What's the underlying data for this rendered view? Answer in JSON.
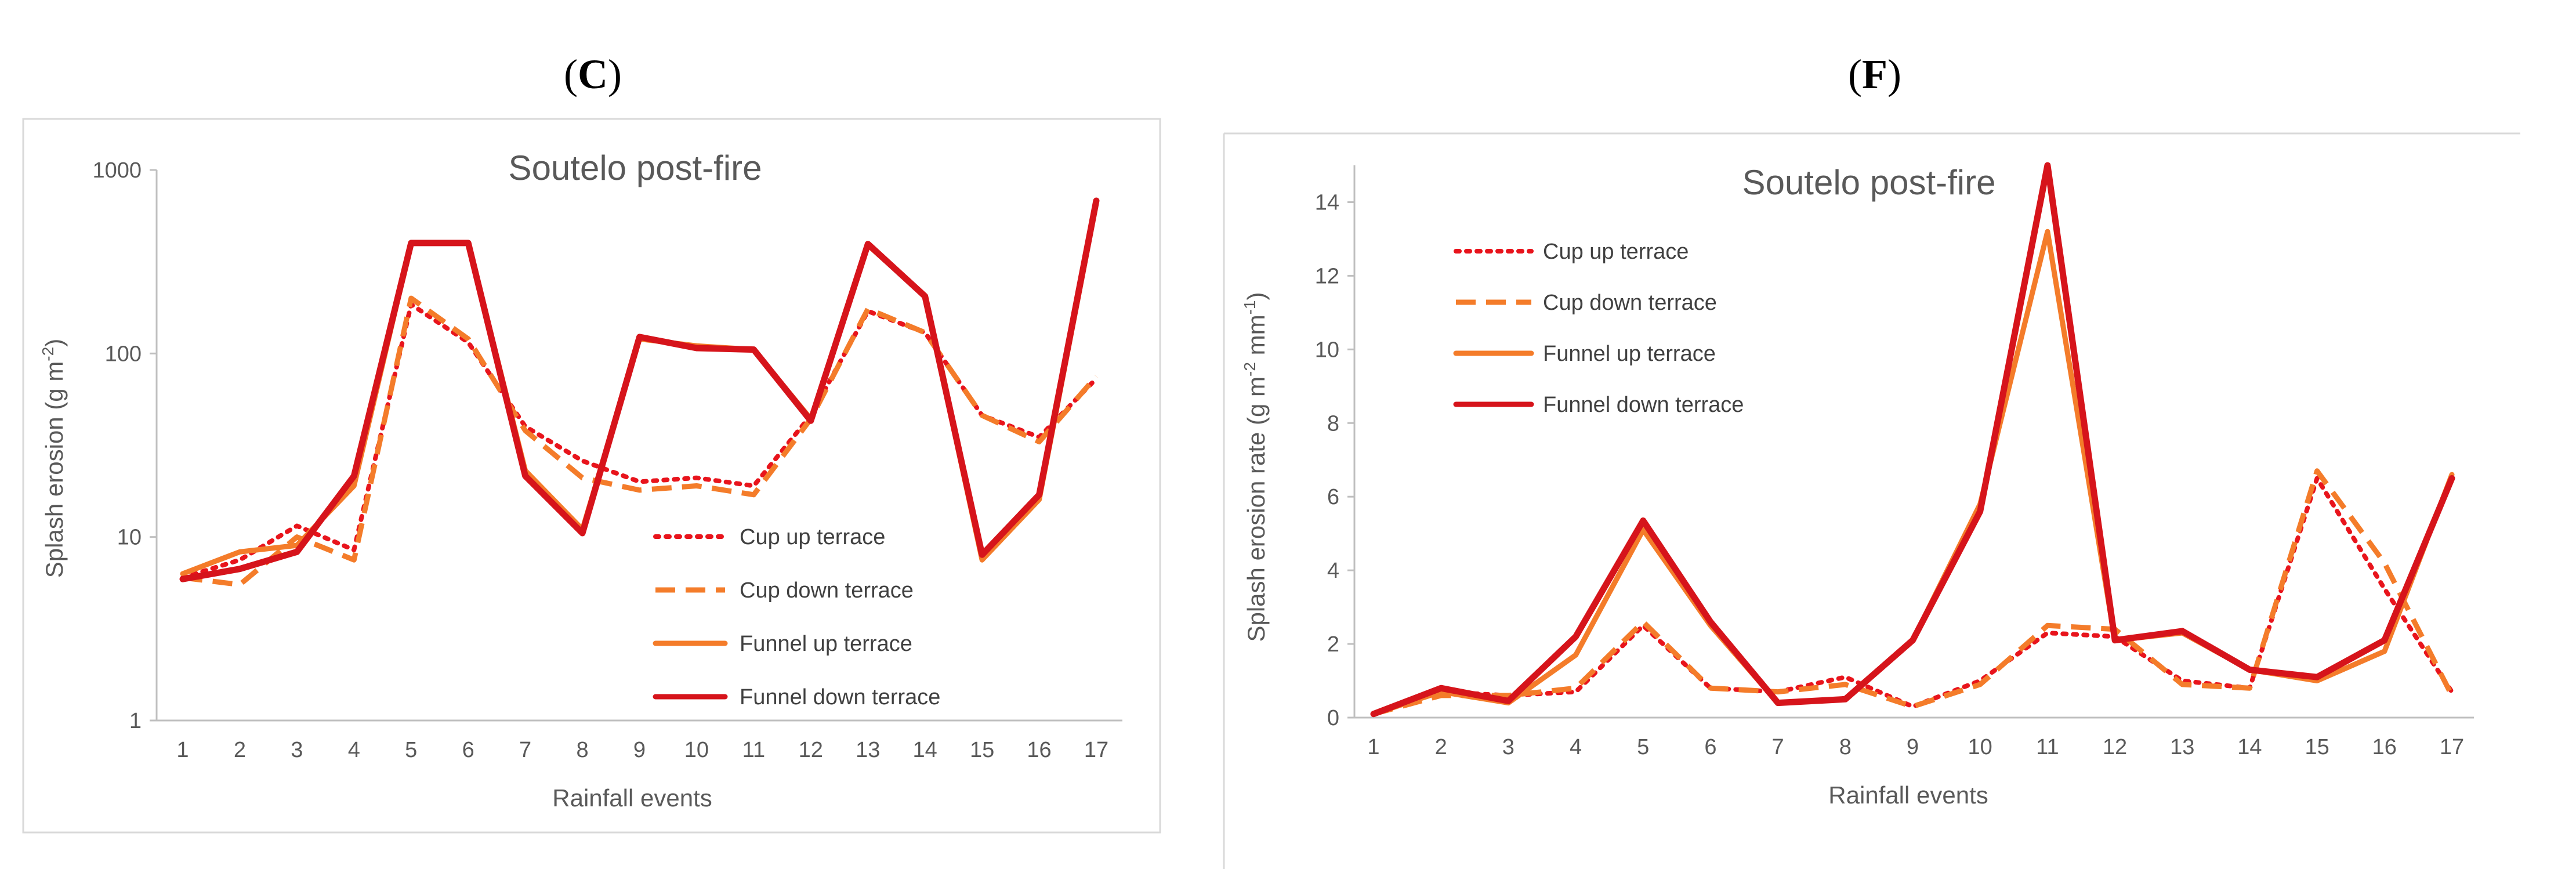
{
  "chart_data": [
    {
      "panel": "(C)",
      "panel_letter": "C",
      "type": "line",
      "title": "Soutelo post-fire",
      "xlabel": "Rainfall events",
      "ylabel": "Splash erosion (g m",
      "ylabel_sup": "-2",
      "ylabel_end": ")",
      "yscale": "log",
      "ylim": [
        1,
        1000
      ],
      "yticks": [
        "1",
        "10",
        "100",
        "1000"
      ],
      "categories": [
        "1",
        "2",
        "3",
        "4",
        "5",
        "6",
        "7",
        "8",
        "9",
        "10",
        "11",
        "12",
        "13",
        "14",
        "15",
        "16",
        "17"
      ],
      "legend_position": "lower-center",
      "series": [
        {
          "name": "Cup up terrace",
          "color": "#e8141c",
          "style": "dotted",
          "values": [
            6,
            7.5,
            11.5,
            8.5,
            185,
            115,
            40,
            26,
            20,
            21,
            19,
            46,
            170,
            130,
            46,
            35,
            73
          ]
        },
        {
          "name": "Cup down terrace",
          "color": "#f47c2a",
          "style": "dashed",
          "values": [
            6,
            5.5,
            10,
            7.5,
            200,
            120,
            38,
            21,
            18,
            19,
            17,
            44,
            175,
            130,
            46,
            33,
            75
          ]
        },
        {
          "name": "Funnel up terrace",
          "color": "#f47c2a",
          "style": "solid",
          "values": [
            6.3,
            8.3,
            9,
            19,
            400,
            400,
            23,
            11,
            120,
            110,
            105,
            44,
            390,
            205,
            7.5,
            16,
            660
          ]
        },
        {
          "name": "Funnel down terrace",
          "color": "#d6141b",
          "style": "solid",
          "values": [
            5.9,
            6.7,
            8.3,
            21.5,
            400,
            400,
            21.5,
            10.5,
            123,
            107,
            105,
            43,
            395,
            205,
            8,
            17,
            680
          ]
        }
      ]
    },
    {
      "panel": "(F)",
      "panel_letter": "F",
      "type": "line",
      "title": "Soutelo post-fire",
      "xlabel": "Rainfall events",
      "ylabel": "Splash erosion rate (g m",
      "ylabel_sup1": "-2",
      "ylabel_mid": " mm",
      "ylabel_sup2": "-1",
      "ylabel_end": ")",
      "yscale": "linear",
      "ylim": [
        0,
        15
      ],
      "yticks": [
        "0",
        "2",
        "4",
        "6",
        "8",
        "10",
        "12",
        "14"
      ],
      "categories": [
        "1",
        "2",
        "3",
        "4",
        "5",
        "6",
        "7",
        "8",
        "9",
        "10",
        "11",
        "12",
        "13",
        "14",
        "15",
        "16",
        "17"
      ],
      "legend_position": "top-left",
      "series": [
        {
          "name": "Cup up terrace",
          "color": "#e8141c",
          "style": "dotted",
          "values": [
            0.1,
            0.7,
            0.6,
            0.7,
            2.5,
            0.8,
            0.7,
            1.1,
            0.3,
            1.0,
            2.3,
            2.2,
            1.0,
            0.8,
            6.5,
            3.5,
            0.7
          ]
        },
        {
          "name": "Cup down terrace",
          "color": "#f47c2a",
          "style": "dashed",
          "values": [
            0.1,
            0.6,
            0.6,
            0.8,
            2.6,
            0.8,
            0.7,
            0.9,
            0.3,
            0.9,
            2.5,
            2.4,
            0.9,
            0.8,
            6.7,
            4.2,
            0.6
          ]
        },
        {
          "name": "Funnel up terrace",
          "color": "#f47c2a",
          "style": "solid",
          "values": [
            0.1,
            0.7,
            0.4,
            1.7,
            5.1,
            2.5,
            0.4,
            0.5,
            2.1,
            5.8,
            13.2,
            2.1,
            2.3,
            1.3,
            1.0,
            1.8,
            6.6
          ]
        },
        {
          "name": "Funnel down terrace",
          "color": "#d6141b",
          "style": "solid",
          "values": [
            0.1,
            0.8,
            0.45,
            2.2,
            5.35,
            2.6,
            0.4,
            0.5,
            2.1,
            5.6,
            15.0,
            2.1,
            2.35,
            1.3,
            1.1,
            2.1,
            6.5
          ]
        }
      ]
    }
  ]
}
